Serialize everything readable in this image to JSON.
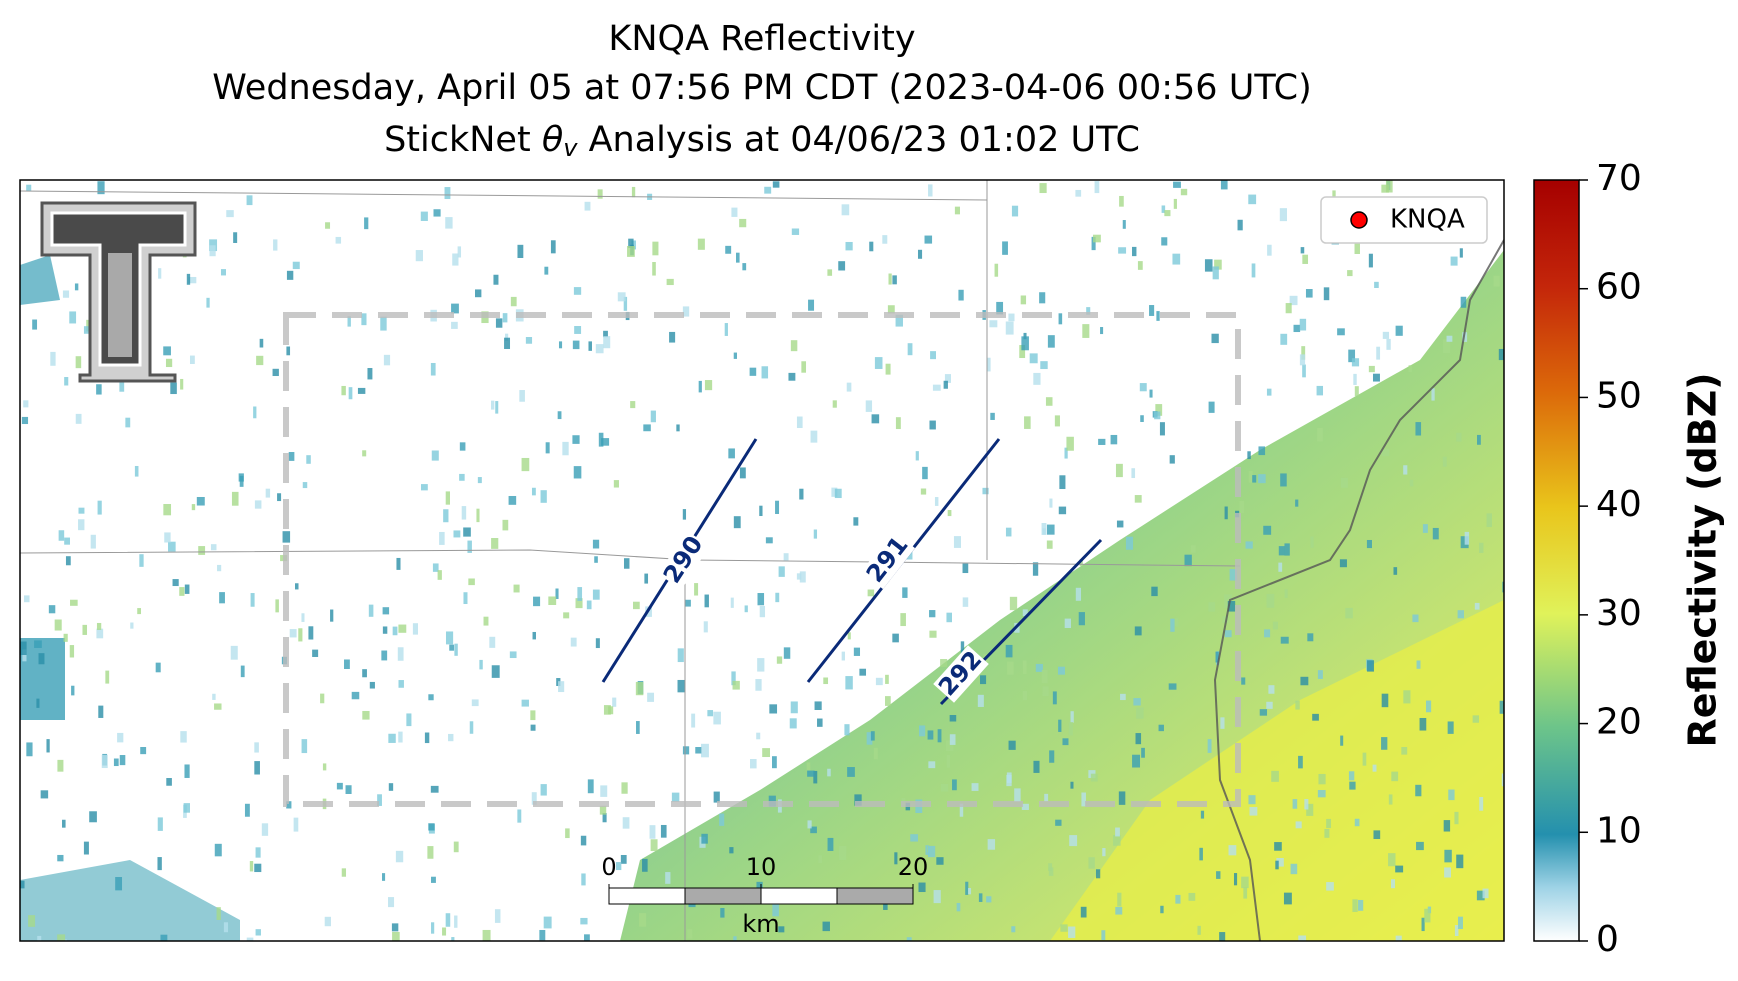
{
  "title": {
    "line1": "KNQA Reflectivity",
    "line2": "Wednesday, April 05 at 07:56 PM CDT (2023-04-06 00:56 UTC)",
    "line3": {
      "prefix": "StickNet ",
      "symbol": "θ",
      "subscript": "v",
      "suffix": " Analysis at 04/06/23 01:02 UTC"
    }
  },
  "legend": {
    "label": "KNQA",
    "color": "#ff0000"
  },
  "contours": [
    {
      "label": "290"
    },
    {
      "label": "291"
    },
    {
      "label": "292"
    }
  ],
  "scale_bar": {
    "ticks": [
      0,
      10,
      20
    ],
    "unit": "km"
  },
  "colorbar": {
    "label": "Reflectivity (dBZ)",
    "lim": [
      0,
      70
    ],
    "ticks": [
      0,
      10,
      20,
      30,
      40,
      50,
      60,
      70
    ]
  }
}
